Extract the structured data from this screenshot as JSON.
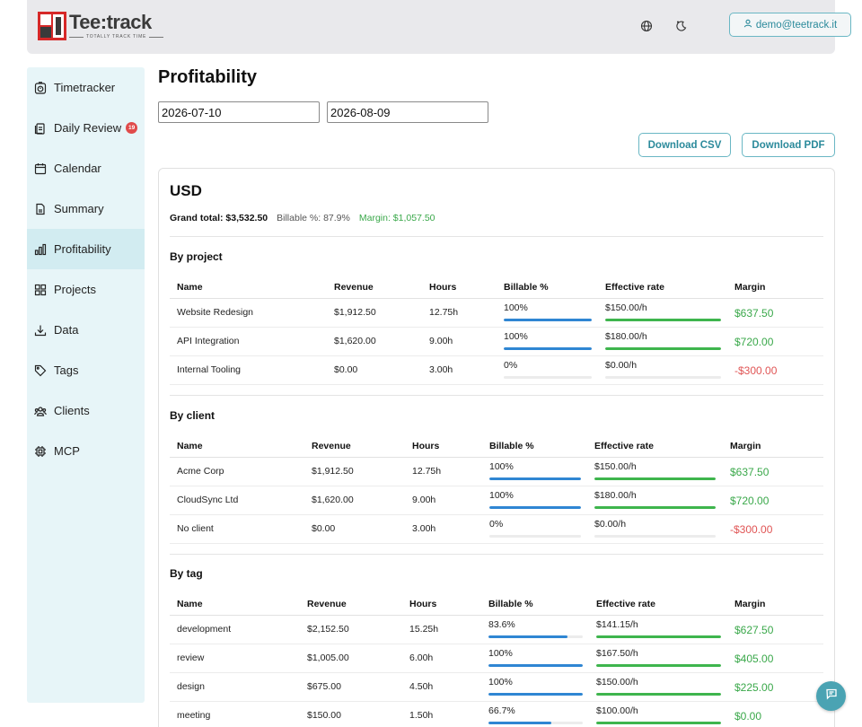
{
  "header": {
    "logo_name": "Tee:track",
    "logo_tagline": "TOTALLY TRACK TIME",
    "user_email": "demo@teetrack.it"
  },
  "sidebar": {
    "items": [
      {
        "label": "Timetracker",
        "icon": "timer-icon"
      },
      {
        "label": "Daily Review",
        "icon": "clipboard-icon",
        "badge": "19"
      },
      {
        "label": "Calendar",
        "icon": "calendar-icon"
      },
      {
        "label": "Summary",
        "icon": "document-icon"
      },
      {
        "label": "Profitability",
        "icon": "bar-chart-icon",
        "active": true
      },
      {
        "label": "Projects",
        "icon": "grid-icon"
      },
      {
        "label": "Data",
        "icon": "download-icon"
      },
      {
        "label": "Tags",
        "icon": "tag-icon"
      },
      {
        "label": "Clients",
        "icon": "users-icon"
      },
      {
        "label": "MCP",
        "icon": "chip-icon"
      }
    ]
  },
  "main": {
    "title": "Profitability",
    "date_from": "2026-07-10",
    "date_to": "2026-08-09",
    "download_csv": "Download CSV",
    "download_pdf": "Download PDF",
    "currency": "USD",
    "grand_total": "Grand total: $3,532.50",
    "billable_pct": "Billable %: 87.9%",
    "margin": "Margin: $1,057.50"
  },
  "headers": {
    "name": "Name",
    "revenue": "Revenue",
    "hours": "Hours",
    "billable": "Billable %",
    "rate": "Effective rate",
    "margin": "Margin"
  },
  "sections": [
    {
      "title": "By project",
      "rows": [
        {
          "name": "Website Redesign",
          "revenue": "$1,912.50",
          "hours": "12.75h",
          "billable": "100%",
          "billable_fraction": 1.0,
          "rate": "$150.00/h",
          "rate_fraction": 1.0,
          "margin": "$637.50",
          "margin_sign": "pos"
        },
        {
          "name": "API Integration",
          "revenue": "$1,620.00",
          "hours": "9.00h",
          "billable": "100%",
          "billable_fraction": 1.0,
          "rate": "$180.00/h",
          "rate_fraction": 1.0,
          "margin": "$720.00",
          "margin_sign": "pos"
        },
        {
          "name": "Internal Tooling",
          "revenue": "$0.00",
          "hours": "3.00h",
          "billable": "0%",
          "billable_fraction": 0.0,
          "rate": "$0.00/h",
          "rate_fraction": 0.0,
          "margin": "-$300.00",
          "margin_sign": "neg"
        }
      ]
    },
    {
      "title": "By client",
      "rows": [
        {
          "name": "Acme Corp",
          "revenue": "$1,912.50",
          "hours": "12.75h",
          "billable": "100%",
          "billable_fraction": 1.0,
          "rate": "$150.00/h",
          "rate_fraction": 1.0,
          "margin": "$637.50",
          "margin_sign": "pos"
        },
        {
          "name": "CloudSync Ltd",
          "revenue": "$1,620.00",
          "hours": "9.00h",
          "billable": "100%",
          "billable_fraction": 1.0,
          "rate": "$180.00/h",
          "rate_fraction": 1.0,
          "margin": "$720.00",
          "margin_sign": "pos"
        },
        {
          "name": "No client",
          "revenue": "$0.00",
          "hours": "3.00h",
          "billable": "0%",
          "billable_fraction": 0.0,
          "rate": "$0.00/h",
          "rate_fraction": 0.0,
          "margin": "-$300.00",
          "margin_sign": "neg"
        }
      ]
    },
    {
      "title": "By tag",
      "rows": [
        {
          "name": "development",
          "revenue": "$2,152.50",
          "hours": "15.25h",
          "billable": "83.6%",
          "billable_fraction": 0.836,
          "rate": "$141.15/h",
          "rate_fraction": 1.0,
          "margin": "$627.50",
          "margin_sign": "pos"
        },
        {
          "name": "review",
          "revenue": "$1,005.00",
          "hours": "6.00h",
          "billable": "100%",
          "billable_fraction": 1.0,
          "rate": "$167.50/h",
          "rate_fraction": 1.0,
          "margin": "$405.00",
          "margin_sign": "pos"
        },
        {
          "name": "design",
          "revenue": "$675.00",
          "hours": "4.50h",
          "billable": "100%",
          "billable_fraction": 1.0,
          "rate": "$150.00/h",
          "rate_fraction": 1.0,
          "margin": "$225.00",
          "margin_sign": "pos"
        },
        {
          "name": "meeting",
          "revenue": "$150.00",
          "hours": "1.50h",
          "billable": "66.7%",
          "billable_fraction": 0.667,
          "rate": "$100.00/h",
          "rate_fraction": 1.0,
          "margin": "$0.00",
          "margin_sign": "pos"
        }
      ]
    }
  ],
  "colors": {
    "accent": "#2b8a9b",
    "positive": "#3aa84a",
    "negative": "#e05555",
    "billable_bar": "#2f86d3",
    "rate_bar": "#3eb54d"
  }
}
